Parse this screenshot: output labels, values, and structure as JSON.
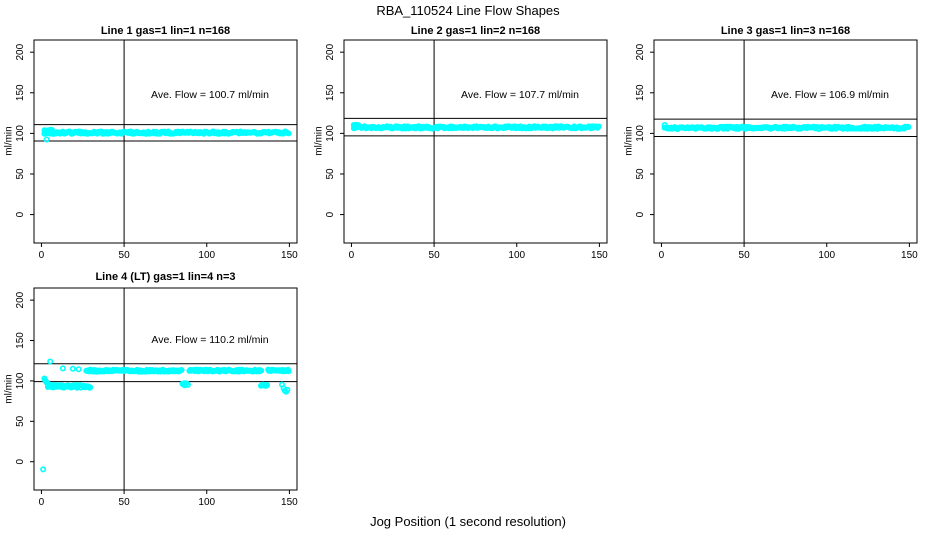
{
  "figure": {
    "title": "RBA_110524  Line Flow Shapes",
    "xlabel": "Jog Position (1 second resolution)",
    "background": "#ffffff",
    "point_color": "#00ffff",
    "axis_color": "#000000"
  },
  "chart_data": {
    "type": "scatter",
    "title": "RBA_110524  Line Flow Shapes",
    "xlabel": "Jog Position (1 second resolution)",
    "ylabel": "ml/min",
    "legend": "none",
    "grid": false,
    "layout": "2x3 panel grid, panels 1-3 top row, panel 4 bottom-left",
    "panels": [
      {
        "id": "line1",
        "title": "Line 1 gas=1 lin=1 n=168",
        "annotation": "Ave. Flow =  100.7  ml/min",
        "ave_flow": 100.7,
        "n": 168,
        "ylabel": "ml/min",
        "xticks": [
          0,
          50,
          100,
          150
        ],
        "yticks": [
          0,
          50,
          100,
          150,
          200
        ],
        "xlim": [
          -4.5,
          154.6
        ],
        "ylim": [
          -35,
          215
        ],
        "vline_x": 50,
        "hlines": [
          90.6,
          110.8
        ],
        "band_segments": [
          {
            "x0": 2,
            "x1": 150,
            "y": 100.9,
            "jit": 1.4,
            "step": 0.65
          },
          {
            "x0": 2,
            "x1": 6.5,
            "y": 103.6,
            "jit": 1.1,
            "step": 0.5
          }
        ],
        "points": [
          [
            3.2,
            92.5
          ]
        ]
      },
      {
        "id": "line2",
        "title": "Line 2 gas=1 lin=2 n=168",
        "annotation": "Ave. Flow =  107.7  ml/min",
        "ave_flow": 107.7,
        "n": 168,
        "ylabel": "ml/min",
        "xticks": [
          0,
          50,
          100,
          150
        ],
        "yticks": [
          0,
          50,
          100,
          150,
          200
        ],
        "xlim": [
          -4.5,
          154.6
        ],
        "ylim": [
          -35,
          215
        ],
        "vline_x": 50,
        "hlines": [
          96.9,
          118.5
        ],
        "band_segments": [
          {
            "x0": 1.5,
            "x1": 150,
            "y": 107.4,
            "jit": 1.4,
            "step": 0.65
          },
          {
            "x0": 1.5,
            "x1": 4.5,
            "y": 109.6,
            "jit": 0.9,
            "step": 0.45
          }
        ],
        "points": []
      },
      {
        "id": "line3",
        "title": "Line 3 gas=1 lin=3 n=168",
        "annotation": "Ave. Flow =  106.9  ml/min",
        "ave_flow": 106.9,
        "n": 168,
        "ylabel": "ml/min",
        "xticks": [
          0,
          50,
          100,
          150
        ],
        "yticks": [
          0,
          50,
          100,
          150,
          200
        ],
        "xlim": [
          -4.5,
          154.6
        ],
        "ylim": [
          -35,
          215
        ],
        "vline_x": 50,
        "hlines": [
          96.2,
          117.6
        ],
        "band_segments": [
          {
            "x0": 2,
            "x1": 150,
            "y": 106.9,
            "jit": 1.4,
            "step": 0.65
          }
        ],
        "points": [
          [
            2,
            110.3
          ]
        ]
      },
      {
        "id": "line4",
        "title": "Line 4 (LT) gas=1 lin=4 n=3",
        "annotation": "Ave. Flow =  110.2  ml/min",
        "ave_flow": 110.2,
        "n": 3,
        "ylabel": "ml/min",
        "xticks": [
          0,
          50,
          100,
          150
        ],
        "yticks": [
          0,
          50,
          100,
          150,
          200
        ],
        "xlim": [
          -4.5,
          154.6
        ],
        "ylim": [
          -35,
          215
        ],
        "vline_x": 50,
        "hlines": [
          99.2,
          121.2
        ],
        "band_segments": [
          {
            "x0": 27,
            "x1": 85,
            "y": 112.6,
            "jit": 1.2,
            "step": 0.55
          },
          {
            "x0": 89.5,
            "x1": 133,
            "y": 112.8,
            "jit": 1.2,
            "step": 0.55
          },
          {
            "x0": 137,
            "x1": 150,
            "y": 112.9,
            "jit": 1.1,
            "step": 0.55
          },
          {
            "x0": 4,
            "x1": 30,
            "y": 93.2,
            "jit": 1.7,
            "step": 0.45
          },
          {
            "x0": 85.5,
            "x1": 88.5,
            "y": 95.9,
            "jit": 1.2,
            "step": 0.5
          },
          {
            "x0": 133,
            "x1": 136.5,
            "y": 94.6,
            "jit": 1.0,
            "step": 0.5
          }
        ],
        "points": [
          [
            1,
            -9.5
          ],
          [
            1.8,
            103
          ],
          [
            2.2,
            101
          ],
          [
            2.6,
            99.7
          ],
          [
            3,
            98.5
          ],
          [
            3.4,
            97.5
          ],
          [
            3.9,
            96.7
          ],
          [
            4.4,
            96
          ],
          [
            5,
            95.3
          ],
          [
            5.3,
            124
          ],
          [
            13,
            115.5
          ],
          [
            19,
            115
          ],
          [
            22.5,
            114.5
          ],
          [
            29.5,
            114
          ],
          [
            86.5,
            97.2
          ],
          [
            145.5,
            95.5
          ],
          [
            146.5,
            91
          ],
          [
            147.2,
            88
          ],
          [
            148,
            86.5
          ],
          [
            148.8,
            89
          ]
        ]
      }
    ]
  }
}
